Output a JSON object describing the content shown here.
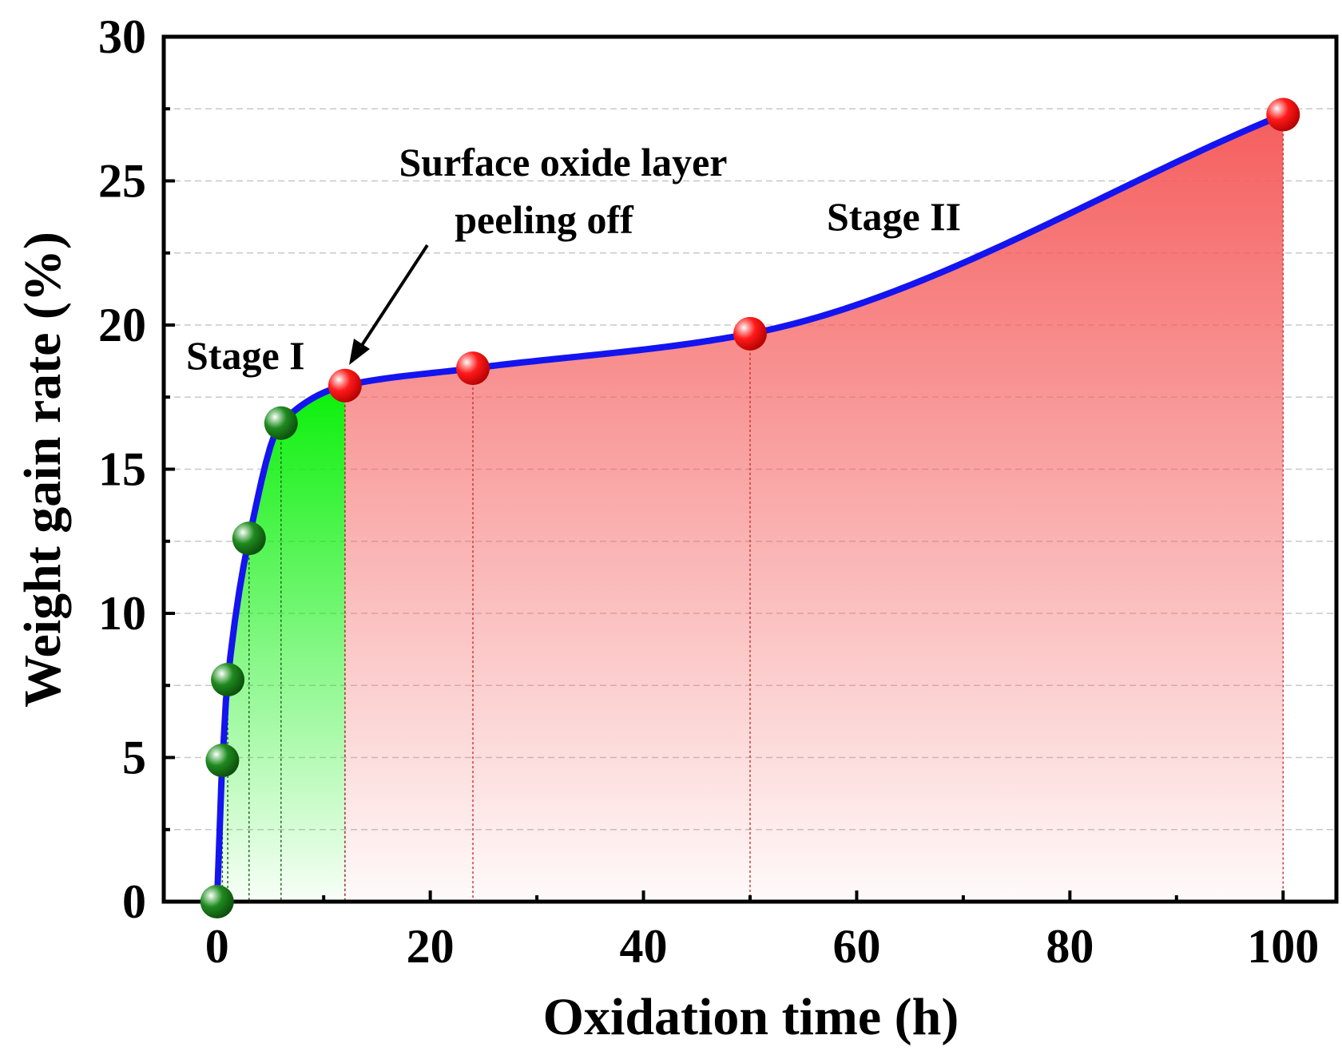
{
  "chart_data": {
    "type": "line",
    "xlabel": "Oxidation time (h)",
    "ylabel": "Weight gain rate (%)",
    "xlim": [
      -5,
      105
    ],
    "ylim": [
      0,
      30
    ],
    "x_ticks": [
      0,
      20,
      40,
      60,
      80,
      100
    ],
    "y_ticks": [
      0,
      5,
      10,
      15,
      20,
      25,
      30
    ],
    "grid": "horizontal dashed",
    "line_color": "#1414f0",
    "series": [
      {
        "stage": "Stage I",
        "marker_color": "#1a7a1a",
        "fill_color": "#19f019",
        "x": [
          0,
          0.5,
          1,
          3,
          6,
          12
        ],
        "y": [
          0,
          4.9,
          7.7,
          12.6,
          16.6,
          17.9
        ]
      },
      {
        "stage": "Stage II",
        "marker_color": "#ee1111",
        "fill_color": "#f86a6a",
        "x": [
          12,
          24,
          50,
          100
        ],
        "y": [
          17.9,
          18.5,
          19.7,
          27.3
        ]
      }
    ],
    "annotations": {
      "stage1": "Stage I",
      "stage2": "Stage II",
      "peel_line1": "Surface oxide layer",
      "peel_line2": "peeling off"
    }
  }
}
